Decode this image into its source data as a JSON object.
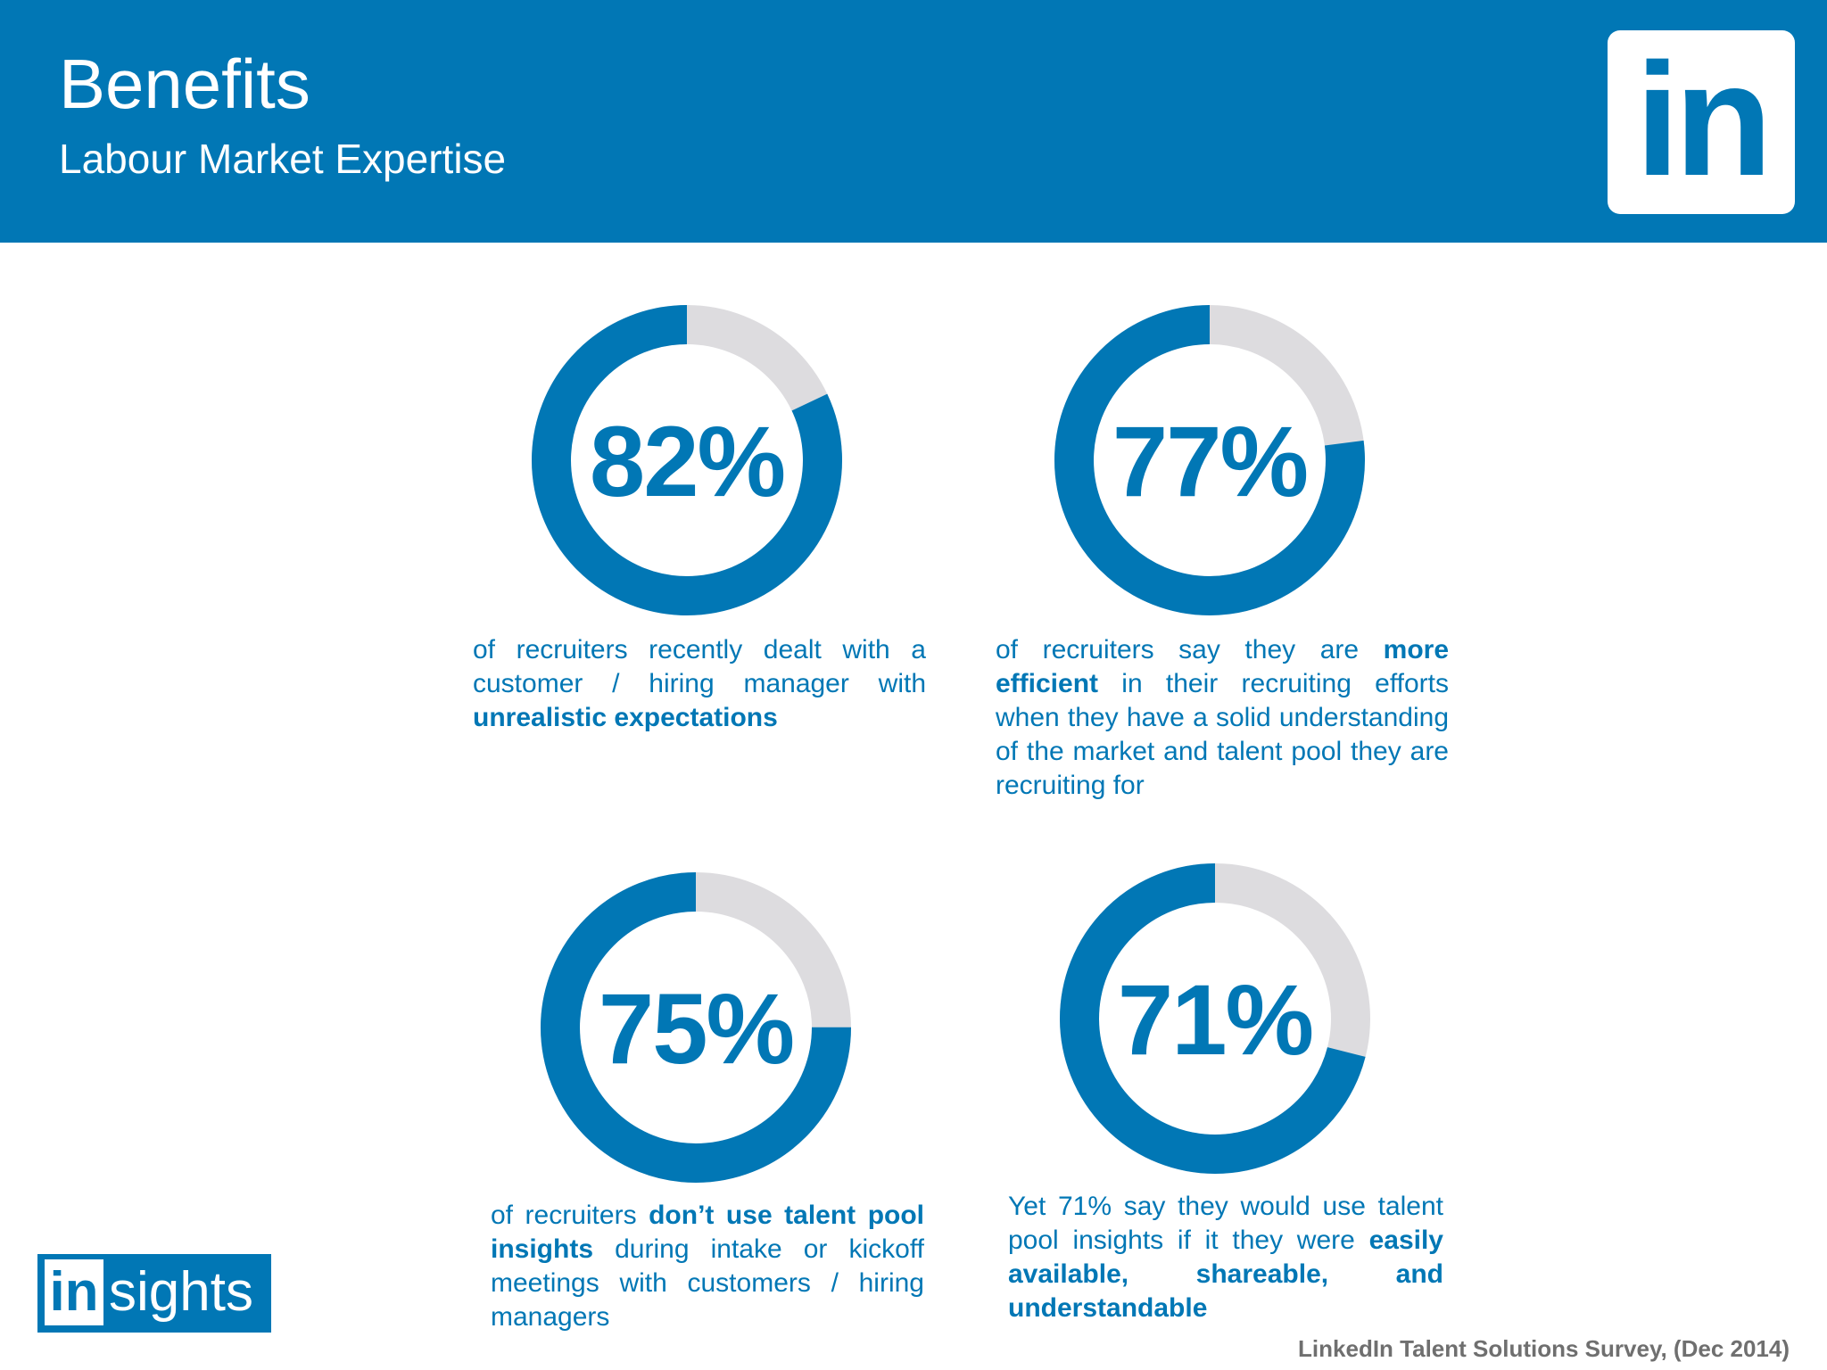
{
  "header": {
    "title": "Benefits",
    "subtitle": "Labour Market Expertise",
    "logo_text": "in"
  },
  "colors": {
    "brand_blue": "#0177b5",
    "ring_track": "#dddcdf"
  },
  "stats": [
    {
      "value": 82,
      "label": "82%",
      "desc": [
        {
          "t": "of recruiters recently dealt with a customer / hiring manager with "
        },
        {
          "t": "unrealistic expectations",
          "b": true
        }
      ]
    },
    {
      "value": 77,
      "label": "77%",
      "desc": [
        {
          "t": "of recruiters say they are "
        },
        {
          "t": "more efficient",
          "b": true
        },
        {
          "t": " in their recruiting efforts when they have a solid understanding of the market and talent pool they are recruiting for"
        }
      ]
    },
    {
      "value": 75,
      "label": "75%",
      "desc": [
        {
          "t": "of recruiters "
        },
        {
          "t": "don’t use talent pool insights",
          "b": true
        },
        {
          "t": " during intake or kickoff meetings with customers / hiring managers"
        }
      ]
    },
    {
      "value": 71,
      "label": "71%",
      "desc": [
        {
          "t": "Yet 71% say they would use talent pool insights if it they were "
        },
        {
          "t": "easily available, shareable, and understandable",
          "b": true
        }
      ]
    }
  ],
  "footer": {
    "brand_in": "in",
    "brand_rest": "sights",
    "source": "LinkedIn Talent Solutions Survey, (Dec 2014)"
  }
}
